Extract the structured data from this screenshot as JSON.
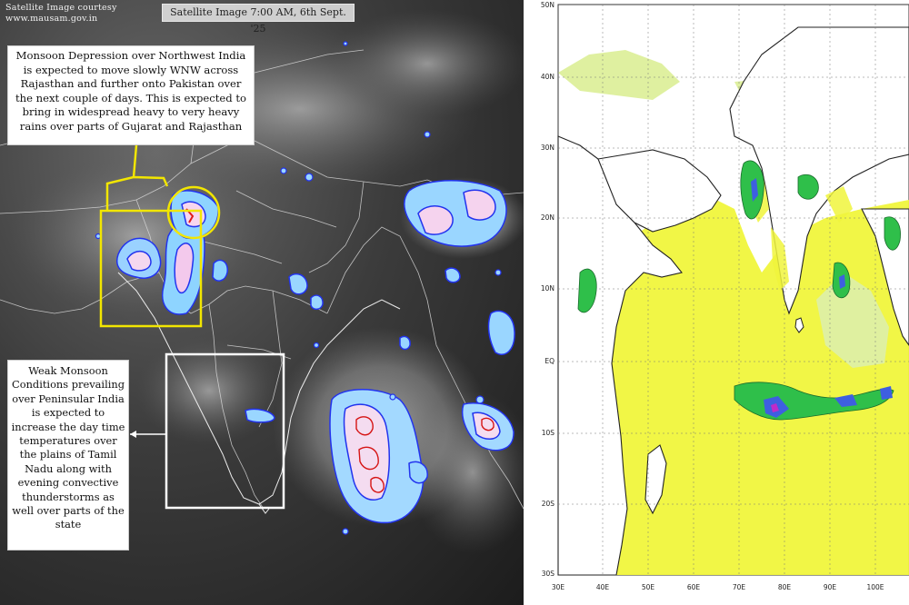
{
  "satellite_panel": {
    "credit_line1": "Satellite Image courtesy",
    "credit_line2": "www.mausam.gov.in",
    "title": "Satellite Image 7:00 AM, 6th Sept. '25",
    "annotation_top": "Monsoon Depression over Northwest India is expected to move slowly WNW across Rajasthan and further onto Pakistan over the next couple of days. This is expected to bring in widespread heavy to very heavy rains over parts of Gujarat and Rajasthan",
    "annotation_side": "Weak Monsoon Conditions prevailing over Peninsular India is expected to increase the day time temperatures over the plains of Tamil Nadu along with evening convective thunderstorms as well over parts of the state",
    "highlight_color": "#f2e600",
    "side_box_color": "#ffffff"
  },
  "model_panel": {
    "lat_labels": [
      "50N",
      "40N",
      "30N",
      "20N",
      "10N",
      "EQ",
      "10S",
      "20S",
      "30S"
    ],
    "lon_labels": [
      "30E",
      "40E",
      "50E",
      "60E",
      "70E",
      "80E",
      "90E",
      "100E"
    ],
    "rain_colors": {
      "light": "#f0f53c",
      "pale": "#dff0a0",
      "moderate": "#2fbf4a",
      "heavy": "#1a8c3a",
      "very_heavy": "#3e5fe0",
      "extreme": "#c02ac8"
    }
  }
}
